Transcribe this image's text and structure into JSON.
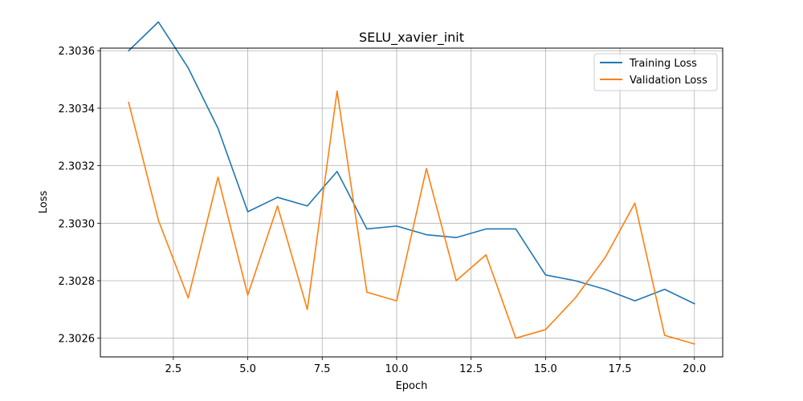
{
  "chart_data": {
    "type": "line",
    "title": "SELU_xavier_init",
    "xlabel": "Epoch",
    "ylabel": "Loss",
    "xlim": [
      0.05,
      20.95
    ],
    "ylim": [
      2.302535,
      2.303609
    ],
    "x_ticks": [
      2.5,
      5.0,
      7.5,
      10.0,
      12.5,
      15.0,
      17.5,
      20.0
    ],
    "x_tick_labels": [
      "2.5",
      "5.0",
      "7.5",
      "10.0",
      "12.5",
      "15.0",
      "17.5",
      "20.0"
    ],
    "y_ticks": [
      2.3026,
      2.3028,
      2.303,
      2.3032,
      2.3034,
      2.3036
    ],
    "y_tick_labels": [
      "2.3026",
      "2.3028",
      "2.3030",
      "2.3032",
      "2.3034",
      "2.3036"
    ],
    "grid": true,
    "legend_position": "top-right",
    "x": [
      1,
      2,
      3,
      4,
      5,
      6,
      7,
      8,
      9,
      10,
      11,
      12,
      13,
      14,
      15,
      16,
      17,
      18,
      19,
      20
    ],
    "series": [
      {
        "name": "Training Loss",
        "color": "#1f77b4",
        "values": [
          2.3036,
          2.3037,
          2.30354,
          2.30333,
          2.30304,
          2.30309,
          2.30306,
          2.30318,
          2.30298,
          2.30299,
          2.30296,
          2.30295,
          2.30298,
          2.30298,
          2.30282,
          2.3028,
          2.30277,
          2.30273,
          2.30277,
          2.30272
        ]
      },
      {
        "name": "Validation Loss",
        "color": "#ff7f0e",
        "values": [
          2.30342,
          2.30301,
          2.30274,
          2.30316,
          2.30275,
          2.30306,
          2.3027,
          2.30346,
          2.30276,
          2.30273,
          2.30319,
          2.3028,
          2.30289,
          2.3026,
          2.30263,
          2.30274,
          2.30288,
          2.30307,
          2.30261,
          2.30258
        ]
      }
    ]
  }
}
